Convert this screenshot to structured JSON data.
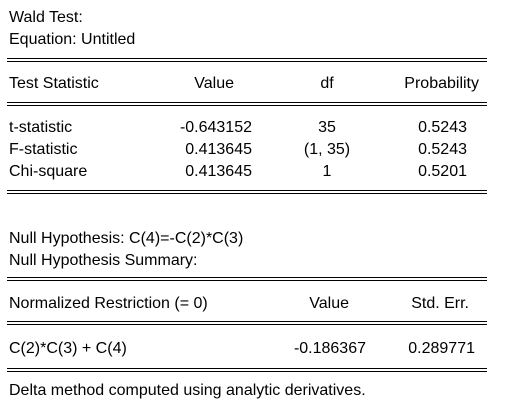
{
  "header": {
    "title": "Wald Test:",
    "equation": "Equation: Untitled"
  },
  "test_table": {
    "columns": [
      "Test Statistic",
      "Value",
      "df",
      "Probability"
    ],
    "rows": [
      {
        "name": "t-statistic",
        "value": "-0.643152",
        "df": "35",
        "prob": "0.5243"
      },
      {
        "name": "F-statistic",
        "value": "0.413645",
        "df": "(1, 35)",
        "prob": "0.5243"
      },
      {
        "name": "Chi-square",
        "value": "0.413645",
        "df": "1",
        "prob": "0.5201"
      }
    ]
  },
  "null_hypothesis": {
    "line": "Null Hypothesis: C(4)=-C(2)*C(3)",
    "summary_title": "Null Hypothesis Summary:"
  },
  "summary_table": {
    "columns": [
      "Normalized Restriction (= 0)",
      "Value",
      "Std. Err."
    ],
    "rows": [
      {
        "restriction": "C(2)*C(3) + C(4)",
        "value": "-0.186367",
        "stderr": "0.289771"
      }
    ]
  },
  "footer": {
    "note": "Delta method computed using analytic derivatives."
  }
}
